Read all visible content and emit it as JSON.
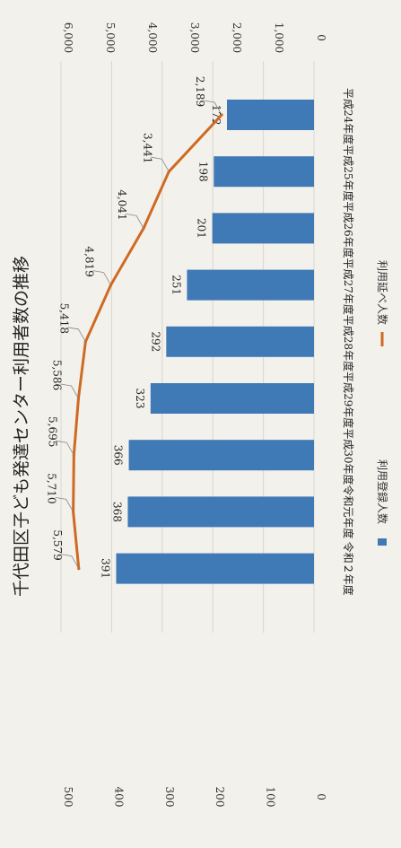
{
  "chart_data": {
    "type": "bar",
    "title": "千代田区子ども発達センター利用者数の推移",
    "categories": [
      "平成24年度",
      "平成25年度",
      "平成26年度",
      "平成27年度",
      "平成28年度",
      "平成29年度",
      "平成30年度",
      "令和元年度",
      "令和２年度"
    ],
    "series": [
      {
        "name": "利用登録人数",
        "type": "bar",
        "axis": "left",
        "color": "#3f79b6",
        "values": [
          172,
          198,
          201,
          251,
          292,
          323,
          366,
          368,
          391
        ],
        "labels": [
          "172",
          "198",
          "201",
          "251",
          "292",
          "323",
          "366",
          "368",
          "391"
        ]
      },
      {
        "name": "利用延べ人数",
        "type": "line",
        "axis": "right",
        "color": "#cf6a22",
        "values": [
          2189,
          3441,
          4041,
          4819,
          5418,
          5586,
          5695,
          5710,
          5579
        ],
        "labels": [
          "2,189",
          "3,441",
          "4,041",
          "4,819",
          "5,418",
          "5,586",
          "5,695",
          "5,710",
          "5,579"
        ]
      }
    ],
    "left_axis": {
      "range": [
        0,
        500
      ],
      "ticks": [
        "0",
        "100",
        "200",
        "300",
        "400",
        "500"
      ]
    },
    "right_axis": {
      "range": [
        0,
        6000
      ],
      "ticks": [
        "0",
        "1,000",
        "2,000",
        "3,000",
        "4,000",
        "5,000",
        "6,000"
      ]
    },
    "legend": {
      "position": "bottom",
      "items": [
        "利用登録人数",
        "利用延べ人数"
      ]
    },
    "orientation": "rotated-90-clockwise"
  }
}
